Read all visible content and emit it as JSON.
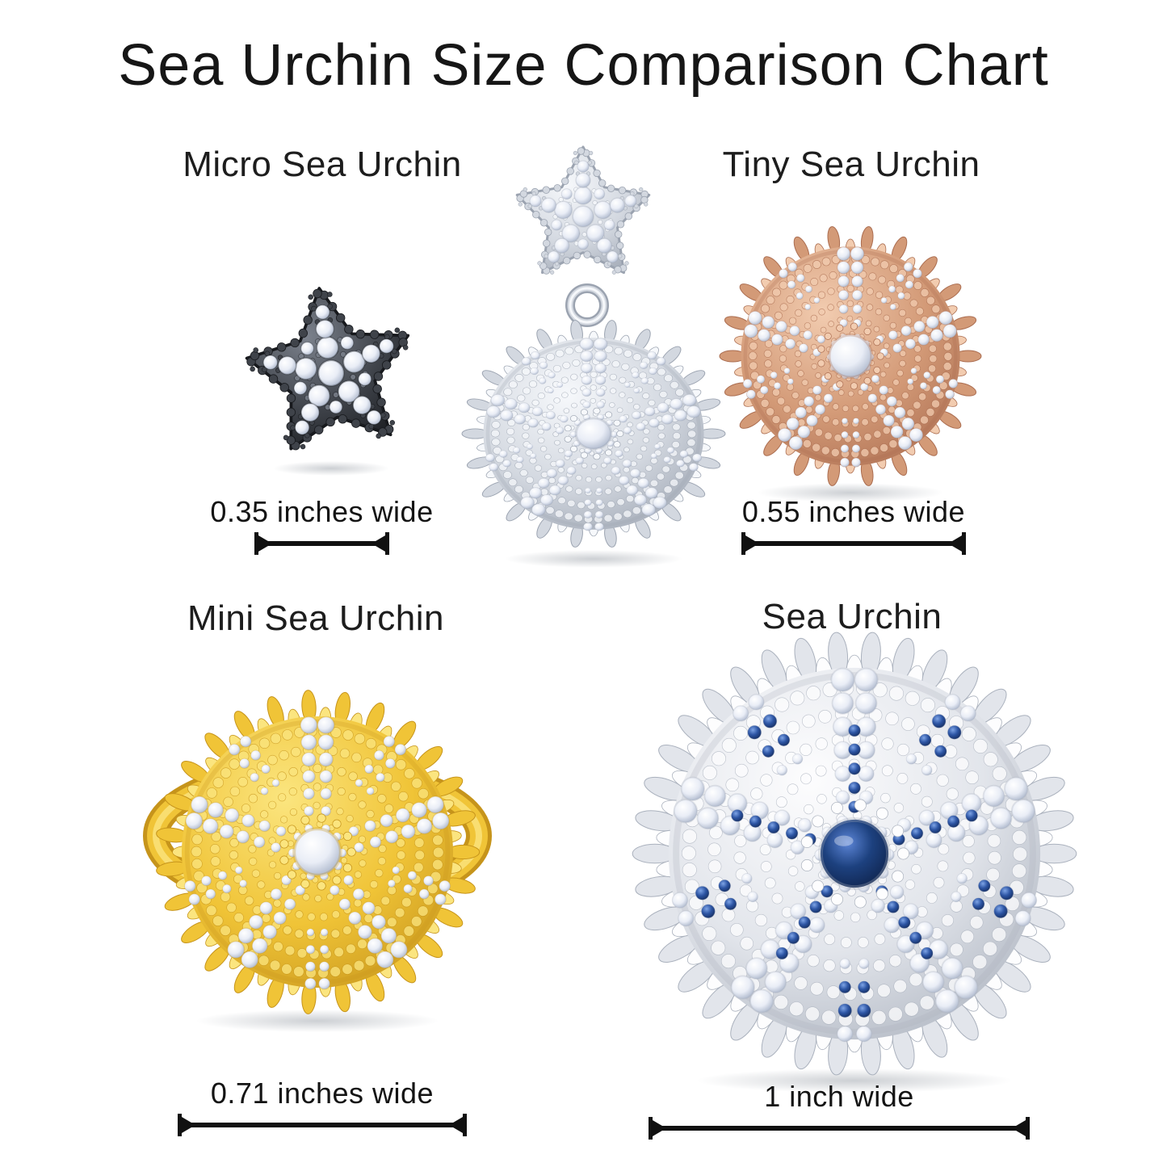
{
  "title": "Sea Urchin Size Comparison Chart",
  "colors": {
    "background": "#ffffff",
    "text": "#1c1c1c",
    "measure_line": "#111111"
  },
  "items": [
    {
      "name": "Micro Sea Urchin",
      "width_label": "0.35 inches wide",
      "metal": {
        "base": "#3f434a",
        "light": "#7c828d",
        "dark": "#17191d"
      },
      "gem": "#eef1f8"
    },
    {
      "metal": {
        "base": "#d3d8e0",
        "light": "#f6f8fb",
        "dark": "#9ba3b0"
      },
      "gem": "#eef1f8"
    },
    {
      "name": "Tiny Sea Urchin",
      "width_label": "0.55 inches wide",
      "metal": {
        "base": "#d39a77",
        "light": "#f2ccb0",
        "dark": "#ab6d50"
      },
      "gem": "#eaeef8"
    },
    {
      "name": "Mini Sea Urchin",
      "width_label": "0.71 inches wide",
      "metal": {
        "base": "#f0c437",
        "light": "#fbe57f",
        "dark": "#c6941b"
      },
      "gem": "#f4f6fa"
    },
    {
      "name": "Sea Urchin",
      "width_label": "1 inch wide",
      "metal": {
        "base": "#e2e5eb",
        "light": "#fdfdfe",
        "dark": "#aab1bd"
      },
      "gem": "#f2f4fa",
      "accent": "#2d55a4",
      "center_gem": "#1d417f"
    }
  ]
}
